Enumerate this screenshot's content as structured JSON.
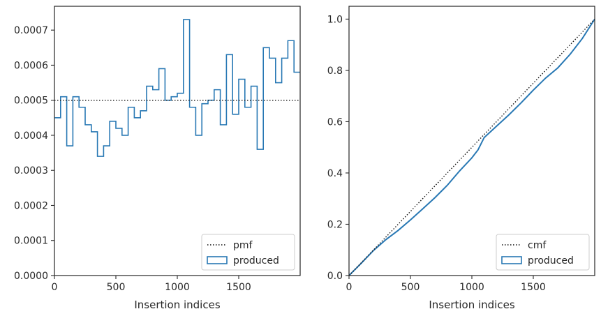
{
  "colors": {
    "series": "#2878b4",
    "reference": "#111111",
    "axes": "#262626",
    "legend_border": "#cccccc"
  },
  "chart_data": [
    {
      "type": "histogram",
      "title": "",
      "xlabel": "Insertion indices",
      "ylabel": "",
      "xlim": [
        0,
        2000
      ],
      "ylim": [
        0,
        0.000768
      ],
      "xticks": [
        0,
        500,
        1000,
        1500
      ],
      "xtick_labels": [
        "0",
        "500",
        "1000",
        "1500"
      ],
      "yticks": [
        0,
        0.0001,
        0.0002,
        0.0003,
        0.0004,
        0.0005,
        0.0006,
        0.0007
      ],
      "ytick_labels": [
        "0.0000",
        "0.0001",
        "0.0002",
        "0.0003",
        "0.0004",
        "0.0005",
        "0.0006",
        "0.0007"
      ],
      "grid": false,
      "legend_position": "lower right",
      "bin_width": 50,
      "series": [
        {
          "name": "produced",
          "style": "step",
          "bin_edges": [
            0,
            50,
            100,
            150,
            200,
            250,
            300,
            350,
            400,
            450,
            500,
            550,
            600,
            650,
            700,
            750,
            800,
            850,
            900,
            950,
            1000,
            1050,
            1100,
            1150,
            1200,
            1250,
            1300,
            1350,
            1400,
            1450,
            1500,
            1550,
            1600,
            1650,
            1700,
            1750,
            1800,
            1850,
            1900,
            1950,
            2000
          ],
          "values": [
            0.00045,
            0.00051,
            0.00037,
            0.00051,
            0.00048,
            0.00043,
            0.00041,
            0.00034,
            0.00037,
            0.00044,
            0.00042,
            0.0004,
            0.00048,
            0.00045,
            0.00047,
            0.00054,
            0.00053,
            0.00059,
            0.0005,
            0.00051,
            0.00052,
            0.00073,
            0.00048,
            0.0004,
            0.00049,
            0.0005,
            0.00053,
            0.00043,
            0.00063,
            0.00046,
            0.00056,
            0.00048,
            0.00054,
            0.00036,
            0.00065,
            0.00062,
            0.00055,
            0.00062,
            0.00067,
            0.00058
          ]
        },
        {
          "name": "pmf",
          "style": "dotted",
          "x": [
            0,
            2000
          ],
          "y": [
            0.0005,
            0.0005
          ]
        }
      ],
      "legend": [
        {
          "label": "pmf",
          "style": "dotted"
        },
        {
          "label": "produced",
          "style": "patch"
        }
      ]
    },
    {
      "type": "line",
      "title": "",
      "xlabel": "Insertion indices",
      "ylabel": "",
      "xlim": [
        0,
        2000
      ],
      "ylim": [
        0,
        1.05
      ],
      "xticks": [
        0,
        500,
        1000,
        1500
      ],
      "xtick_labels": [
        "0",
        "500",
        "1000",
        "1500"
      ],
      "yticks": [
        0,
        0.2,
        0.4,
        0.6,
        0.8,
        1.0
      ],
      "ytick_labels": [
        "0.0",
        "0.2",
        "0.4",
        "0.6",
        "0.8",
        "1.0"
      ],
      "grid": false,
      "legend_position": "lower right",
      "series": [
        {
          "name": "produced",
          "style": "solid",
          "x": [
            0,
            100,
            200,
            300,
            400,
            500,
            600,
            700,
            800,
            900,
            1000,
            1050,
            1100,
            1200,
            1300,
            1400,
            1500,
            1600,
            1700,
            1800,
            1900,
            2000
          ],
          "y": [
            0.0,
            0.048,
            0.098,
            0.14,
            0.176,
            0.217,
            0.26,
            0.304,
            0.352,
            0.408,
            0.459,
            0.49,
            0.538,
            0.582,
            0.626,
            0.673,
            0.723,
            0.77,
            0.81,
            0.863,
            0.925,
            1.0
          ]
        },
        {
          "name": "cmf",
          "style": "dotted",
          "x": [
            0,
            2000
          ],
          "y": [
            0.0,
            1.0
          ]
        }
      ],
      "legend": [
        {
          "label": "cmf",
          "style": "dotted"
        },
        {
          "label": "produced",
          "style": "patch"
        }
      ]
    }
  ]
}
